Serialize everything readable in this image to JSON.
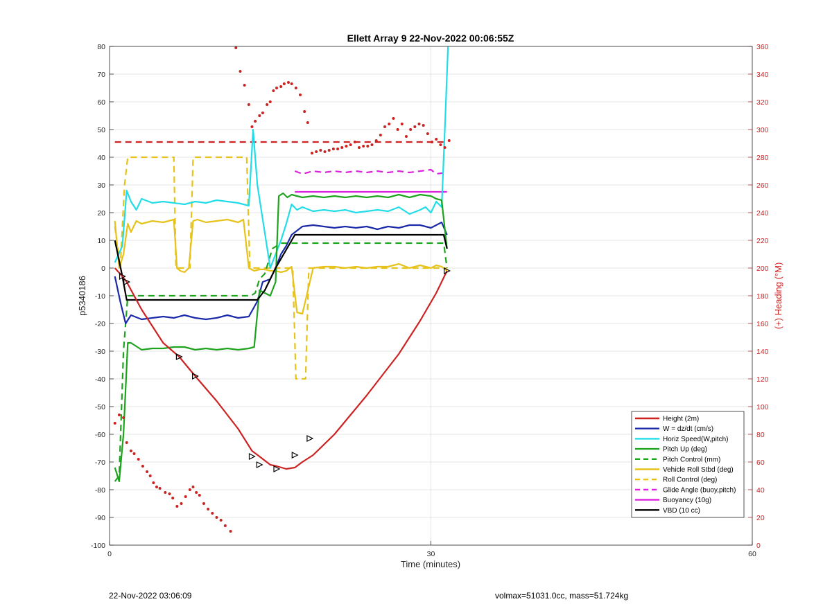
{
  "footer": {
    "left": "22-Nov-2022 03:06:09",
    "right": "volmax=51031.0cc, mass=51.724kg"
  },
  "chart_data": {
    "type": "line",
    "title": "Ellett Array 9 22-Nov-2022 00:06:55Z",
    "xlabel": "Time (minutes)",
    "ylabel": "p5340186",
    "y2label": "(+) Heading (°M)",
    "xlim": [
      0,
      60
    ],
    "ylim": [
      -100,
      80
    ],
    "y2lim": [
      0,
      360
    ],
    "xticks": [
      0,
      30,
      60
    ],
    "yticks": [
      -100,
      -90,
      -80,
      -70,
      -60,
      -50,
      -40,
      -30,
      -20,
      -10,
      0,
      10,
      20,
      30,
      40,
      50,
      60,
      70,
      80
    ],
    "y2ticks": [
      0,
      20,
      40,
      60,
      80,
      100,
      120,
      140,
      160,
      180,
      200,
      220,
      240,
      260,
      280,
      300,
      320,
      340,
      360
    ],
    "grid": true,
    "legend_position": "bottom-right",
    "series": [
      {
        "name": "Height (2m)",
        "color": "#cc2222",
        "style": "solid",
        "width": 2.2,
        "x": [
          0.5,
          1.2,
          1.6,
          3,
          5,
          6.5,
          8,
          10,
          12,
          13.3,
          14,
          15,
          15.6,
          16.5,
          17.3,
          18,
          19,
          21,
          24,
          27,
          29,
          30.5,
          31.5
        ],
        "y": [
          0,
          -3,
          -5,
          -15,
          -27,
          -32,
          -39,
          -48,
          -58,
          -66,
          -68,
          -71,
          -71.5,
          -72.5,
          -72,
          -70,
          -67.5,
          -60,
          -46,
          -31,
          -19,
          -9,
          -1
        ],
        "markers": [
          [
            1.2,
            -3
          ],
          [
            1.6,
            -5
          ],
          [
            6.5,
            -32
          ],
          [
            8,
            -39
          ],
          [
            13.3,
            -68
          ],
          [
            14,
            -71
          ],
          [
            15.6,
            -72.5
          ],
          [
            17.3,
            -67.5
          ],
          [
            18.7,
            -61.5
          ],
          [
            31.5,
            -1
          ]
        ]
      },
      {
        "name": "W = dz/dt (cm/s)",
        "color": "#1a2aa8",
        "style": "solid",
        "width": 2.2,
        "x": [
          0.5,
          1,
          1.5,
          2,
          3,
          4,
          5,
          6,
          7,
          8,
          9,
          10,
          11,
          12,
          13,
          13.8,
          14.3,
          15,
          15.5,
          16,
          16.5,
          17,
          18,
          19,
          20,
          21,
          22,
          23,
          24,
          25,
          26,
          27,
          28,
          29,
          30,
          31,
          31.5
        ],
        "y": [
          -3,
          -12,
          -20,
          -17,
          -18.5,
          -18,
          -17.5,
          -18,
          -17,
          -18,
          -18.5,
          -18,
          -17,
          -18,
          -17.5,
          -12,
          -5,
          -4,
          0,
          5,
          8,
          12,
          15,
          15.5,
          15,
          14.5,
          15,
          14.5,
          15,
          14,
          15,
          14.5,
          15.5,
          15.5,
          14.5,
          16.5,
          12
        ]
      },
      {
        "name": "Horiz Speed(W,pitch)",
        "color": "#22dde8",
        "style": "solid",
        "width": 2.2,
        "x": [
          0.5,
          1.2,
          1.6,
          2,
          2.5,
          3,
          4,
          5,
          6,
          7,
          8,
          9,
          10,
          11,
          12,
          13,
          13.4,
          13.8,
          14.2,
          14.6,
          15,
          15.5,
          16,
          16.5,
          17,
          17.5,
          18,
          19,
          20,
          21,
          22,
          23,
          24,
          25,
          26,
          27,
          28,
          29,
          29.5,
          30,
          30.5,
          31,
          31.3,
          31.6
        ],
        "y": [
          2,
          8,
          28,
          24,
          21,
          25,
          23.5,
          24,
          23.5,
          23,
          24,
          23.5,
          24.5,
          24,
          23.5,
          22.5,
          50,
          30,
          20,
          10,
          0,
          5,
          10,
          16,
          23,
          21,
          22,
          20.5,
          21,
          20.5,
          21,
          20,
          20.5,
          21,
          20.5,
          22,
          19.5,
          21,
          22,
          20,
          24,
          22,
          50,
          80
        ]
      },
      {
        "name": "Pitch Up (deg)",
        "color": "#1ea31e",
        "style": "solid",
        "width": 2.2,
        "x": [
          0.5,
          0.9,
          1.3,
          1.7,
          2,
          3,
          4,
          5,
          6,
          7,
          8,
          9,
          10,
          11,
          12,
          13,
          13.5,
          14,
          14.5,
          15,
          15.5,
          15.8,
          16.2,
          16.6,
          17,
          18,
          19,
          20,
          21,
          22,
          23,
          24,
          25,
          26,
          27,
          28,
          29,
          30,
          30.5,
          31,
          31.5
        ],
        "y": [
          -72,
          -77,
          -60,
          -27,
          -27,
          -29.5,
          -29,
          -29,
          -28.5,
          -28.5,
          -29.5,
          -29,
          -29.5,
          -29,
          -29.5,
          -29,
          -28.5,
          -8,
          -9,
          -10,
          -5,
          26,
          27,
          25.5,
          26.5,
          25.5,
          26,
          25.5,
          26,
          25.5,
          26,
          25.5,
          26,
          25.5,
          26.5,
          25.5,
          26.5,
          26,
          25,
          24.5,
          7
        ]
      },
      {
        "name": "Pitch Control (mm)",
        "color": "#1ea31e",
        "style": "dashed",
        "width": 2.2,
        "x": [
          0.5,
          0.9,
          1.3,
          1.7,
          2,
          13.2,
          13.6,
          14,
          14.5,
          15.2,
          16,
          16.5,
          31.2,
          31.5
        ],
        "y": [
          -77,
          -75,
          -30,
          -10,
          -10,
          -10,
          -9,
          -4,
          -2,
          7,
          9,
          9,
          9,
          0
        ]
      },
      {
        "name": "Vehicle Roll Stbd (deg)",
        "color": "#e6c21a",
        "style": "solid",
        "width": 2.2,
        "x": [
          0.5,
          0.9,
          1.3,
          1.7,
          2,
          2.5,
          3,
          4,
          5,
          6,
          6.3,
          6.6,
          7,
          7.4,
          7.8,
          8.2,
          9,
          10,
          11,
          12,
          12.5,
          13,
          13.5,
          14,
          14.5,
          15,
          15.5,
          16,
          16.5,
          17,
          17.5,
          18,
          19,
          20,
          21,
          22,
          23,
          24,
          25,
          26,
          27,
          28,
          29,
          30,
          30.5,
          31,
          31.5
        ],
        "y": [
          17,
          0,
          5,
          16,
          13,
          17,
          16,
          17,
          16.5,
          17.5,
          0,
          -1,
          -1.5,
          0,
          17,
          17.5,
          16.5,
          17,
          17.5,
          16.5,
          17.5,
          0,
          -1,
          -0.5,
          -0.5,
          -1,
          -1,
          -1.5,
          -1,
          0.5,
          -16,
          -16.5,
          0,
          0.5,
          0.5,
          0,
          0.5,
          0,
          0.5,
          0.5,
          1.5,
          0,
          1,
          0,
          1,
          0.5,
          -1
        ]
      },
      {
        "name": "Roll Control (deg)",
        "color": "#e6c21a",
        "style": "dashed",
        "width": 2.2,
        "x": [
          0.5,
          1,
          1.4,
          1.7,
          2,
          6,
          6.2,
          7.2,
          7.5,
          7.8,
          12.8,
          13.1,
          14,
          14.3,
          14.7,
          15.3,
          16.8,
          17.1,
          17.4,
          18.3,
          18.6,
          18.9,
          30.2,
          31.5
        ],
        "y": [
          15,
          0,
          30,
          40,
          40,
          40,
          0,
          0,
          0,
          40,
          40,
          0,
          0,
          0,
          0,
          0,
          0,
          0,
          -40,
          -40,
          0,
          0,
          0,
          0
        ]
      },
      {
        "name": "Glide Angle (buoy,pitch)",
        "color": "#dd22dd",
        "style": "dashed",
        "width": 2.2,
        "x": [
          17.3,
          18,
          19,
          20,
          21,
          22,
          23,
          24,
          25,
          26,
          27,
          28,
          29,
          30,
          30.5,
          31.5
        ],
        "y": [
          35,
          34,
          35,
          34.5,
          35,
          34.5,
          35,
          34.5,
          35,
          34.5,
          35,
          34.5,
          35,
          35.5,
          34,
          34.5
        ]
      },
      {
        "name": "Buoyancy (10g)",
        "color": "#dd22dd",
        "style": "solid",
        "width": 2.2,
        "x": [
          17.3,
          31.5
        ],
        "y": [
          27.5,
          27.5
        ]
      },
      {
        "name": "VBD (10 cc)",
        "color": "#000000",
        "style": "solid",
        "width": 2.2,
        "x": [
          0.5,
          1.2,
          1.6,
          13.8,
          14.5,
          15.5,
          17.3,
          31.2,
          31.5
        ],
        "y": [
          10,
          -3,
          -11.5,
          -11.5,
          -8,
          0,
          12,
          12,
          7
        ]
      }
    ],
    "reference_line": {
      "axis": "y2",
      "value": 291,
      "color": "#cc2222",
      "style": "dashed",
      "x": [
        0.5,
        31.5
      ]
    },
    "heading_points": {
      "axis": "y2",
      "color": "#cc2222",
      "x": [
        0.5,
        0.9,
        1.3,
        1.6,
        2,
        2.3,
        2.7,
        3.1,
        3.5,
        3.8,
        4.1,
        4.4,
        4.7,
        5.2,
        5.6,
        5.9,
        6.3,
        6.7,
        7.1,
        7.5,
        7.8,
        8.1,
        8.4,
        8.8,
        9.2,
        9.6,
        10,
        10.4,
        10.8,
        11.3,
        11.8,
        12.2,
        12.6,
        13,
        13.3,
        13.6,
        14,
        14.3,
        14.7,
        15,
        15.3,
        15.6,
        16,
        16.3,
        16.7,
        17,
        17.4,
        17.8,
        18.2,
        18.5,
        18.9,
        19.3,
        19.7,
        20.1,
        20.5,
        20.9,
        21.3,
        21.7,
        22.1,
        22.5,
        22.9,
        23.3,
        23.7,
        24.1,
        24.5,
        24.9,
        25.3,
        25.7,
        26.1,
        26.5,
        26.9,
        27.3,
        27.7,
        28.1,
        28.5,
        28.9,
        29.3,
        29.7,
        30.1,
        30.5,
        30.9,
        31.3,
        31.7
      ],
      "y": [
        88,
        94,
        92,
        74,
        68,
        66,
        62,
        57,
        53,
        50,
        45,
        42,
        41,
        38,
        37,
        34,
        28,
        30,
        35,
        40,
        42,
        38,
        36,
        30,
        26,
        23,
        20,
        18,
        14,
        10,
        359,
        342,
        332,
        318,
        302,
        306,
        310,
        312,
        318,
        320,
        328,
        330,
        331,
        333,
        334,
        333,
        330,
        325,
        313,
        305,
        283,
        284,
        285,
        284,
        285,
        286,
        286,
        287,
        288,
        289,
        291,
        287,
        288,
        288,
        289,
        292,
        296,
        302,
        304,
        308,
        300,
        304,
        295,
        300,
        302,
        304,
        303,
        297,
        291,
        293,
        289,
        287,
        292
      ]
    }
  }
}
